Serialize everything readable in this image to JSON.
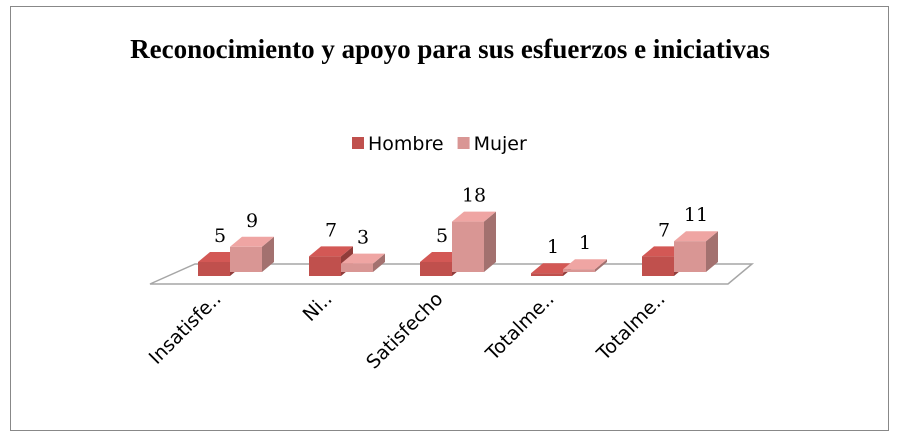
{
  "chart_data": {
    "type": "bar3d",
    "title": "Reconocimiento y apoyo para sus esfuerzos e iniciativas",
    "categories": [
      "Insatisfe..",
      "Ni..",
      "Satisfecho",
      "Totalme..",
      "Totalme.."
    ],
    "series": [
      {
        "name": "Hombre",
        "color": "#c0504d",
        "values": [
          5,
          7,
          5,
          1,
          7
        ]
      },
      {
        "name": "Mujer",
        "color": "#d99694",
        "values": [
          9,
          3,
          18,
          1,
          11
        ]
      }
    ],
    "legend": "top"
  }
}
